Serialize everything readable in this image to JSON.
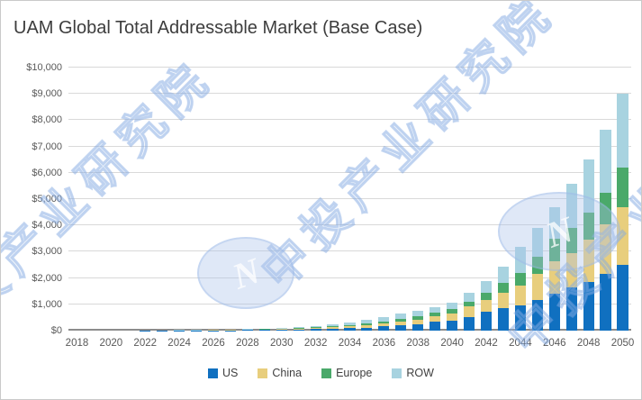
{
  "title": "UAM Global Total Addressable Market (Base Case)",
  "watermark": {
    "text": "中投产业研究院",
    "logo_letter": "N"
  },
  "legend": {
    "items": [
      "US",
      "China",
      "Europe",
      "ROW"
    ]
  },
  "chart_data": {
    "type": "bar",
    "stacked": true,
    "title": "UAM Global Total Addressable Market (Base Case)",
    "xlabel": "",
    "ylabel": "",
    "unit": "US$ billions",
    "ylim": [
      0,
      10000
    ],
    "y_tick_step": 1000,
    "y_tick_labels": [
      "$0",
      "$1,000",
      "$2,000",
      "$3,000",
      "$4,000",
      "$5,000",
      "$6,000",
      "$7,000",
      "$8,000",
      "$9,000",
      "$10,000"
    ],
    "grid": true,
    "legend_position": "bottom",
    "categories": [
      2018,
      2019,
      2020,
      2021,
      2022,
      2023,
      2024,
      2025,
      2026,
      2027,
      2028,
      2029,
      2030,
      2031,
      2032,
      2033,
      2034,
      2035,
      2036,
      2037,
      2038,
      2039,
      2040,
      2041,
      2042,
      2043,
      2044,
      2045,
      2046,
      2047,
      2048,
      2049,
      2050
    ],
    "x_tick_labels": [
      "2018",
      "2020",
      "2022",
      "2024",
      "2026",
      "2028",
      "2030",
      "2032",
      "2034",
      "2036",
      "2038",
      "2040",
      "2042",
      "2044",
      "2046",
      "2048",
      "2050"
    ],
    "series": [
      {
        "name": "US",
        "color": "#1070C0",
        "values": [
          0,
          1,
          1,
          2,
          3,
          4,
          6,
          8,
          11,
          15,
          20,
          26,
          33,
          43,
          54,
          70,
          93,
          120,
          156,
          192,
          235,
          330,
          390,
          510,
          720,
          850,
          950,
          1150,
          1400,
          1650,
          1850,
          2150,
          2500
        ]
      },
      {
        "name": "China",
        "color": "#E8CE7D",
        "values": [
          0,
          0,
          1,
          1,
          2,
          3,
          4,
          6,
          8,
          11,
          15,
          19,
          25,
          32,
          41,
          53,
          70,
          92,
          120,
          147,
          170,
          210,
          270,
          410,
          460,
          600,
          750,
          1000,
          1250,
          1300,
          1600,
          1900,
          2200
        ]
      },
      {
        "name": "Europe",
        "color": "#4AA96A",
        "values": [
          0,
          0,
          0,
          1,
          1,
          2,
          3,
          4,
          6,
          8,
          10,
          13,
          17,
          22,
          28,
          36,
          48,
          62,
          81,
          100,
          145,
          150,
          150,
          180,
          260,
          380,
          500,
          650,
          850,
          950,
          1050,
          1200,
          1500
        ]
      },
      {
        "name": "ROW",
        "color": "#A8D3E0",
        "values": [
          1,
          1,
          1,
          2,
          3,
          4,
          6,
          9,
          12,
          16,
          21,
          27,
          35,
          45,
          57,
          74,
          99,
          126,
          163,
          201,
          210,
          200,
          240,
          350,
          440,
          600,
          1000,
          1100,
          1200,
          1700,
          2000,
          2400,
          2800
        ]
      }
    ]
  }
}
